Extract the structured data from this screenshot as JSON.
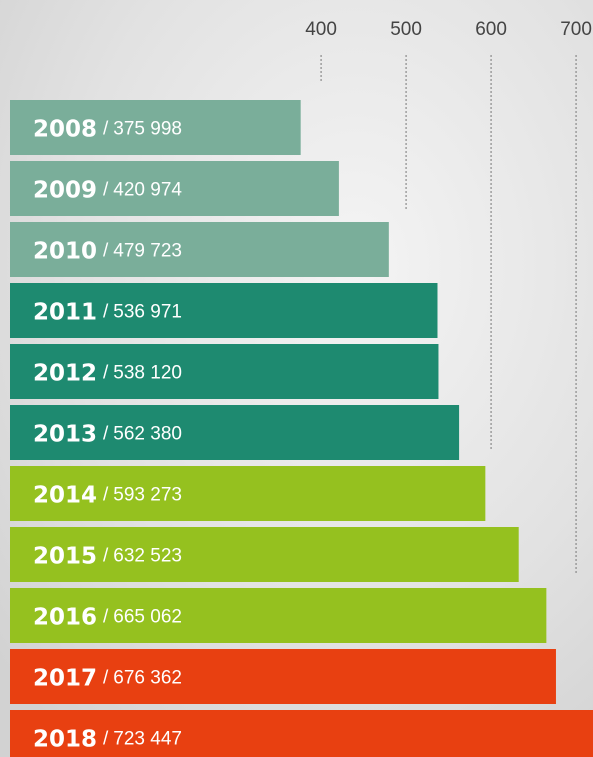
{
  "chart_data": {
    "type": "hbar",
    "categories": [
      "2008",
      "2009",
      "2010",
      "2011",
      "2012",
      "2013",
      "2014",
      "2015",
      "2016",
      "2017",
      "2018"
    ],
    "values": [
      375.998,
      420.974,
      479.723,
      536.971,
      538.12,
      562.38,
      593.273,
      632.523,
      665.062,
      676.362,
      723.447
    ],
    "value_labels": [
      "375 998",
      "420 974",
      "479 723",
      "536 971",
      "538 120",
      "562 380",
      "593 273",
      "632 523",
      "665 062",
      "676 362",
      "723 447"
    ],
    "separator": "/",
    "colors": [
      "#7aae9a",
      "#7aae9a",
      "#7aae9a",
      "#1e8a70",
      "#1e8a70",
      "#1e8a70",
      "#95c11f",
      "#95c11f",
      "#95c11f",
      "#e84011",
      "#e84011"
    ],
    "xlim": [
      34,
      727
    ],
    "xticks": [
      400,
      500,
      600,
      700
    ],
    "grid": true
  }
}
